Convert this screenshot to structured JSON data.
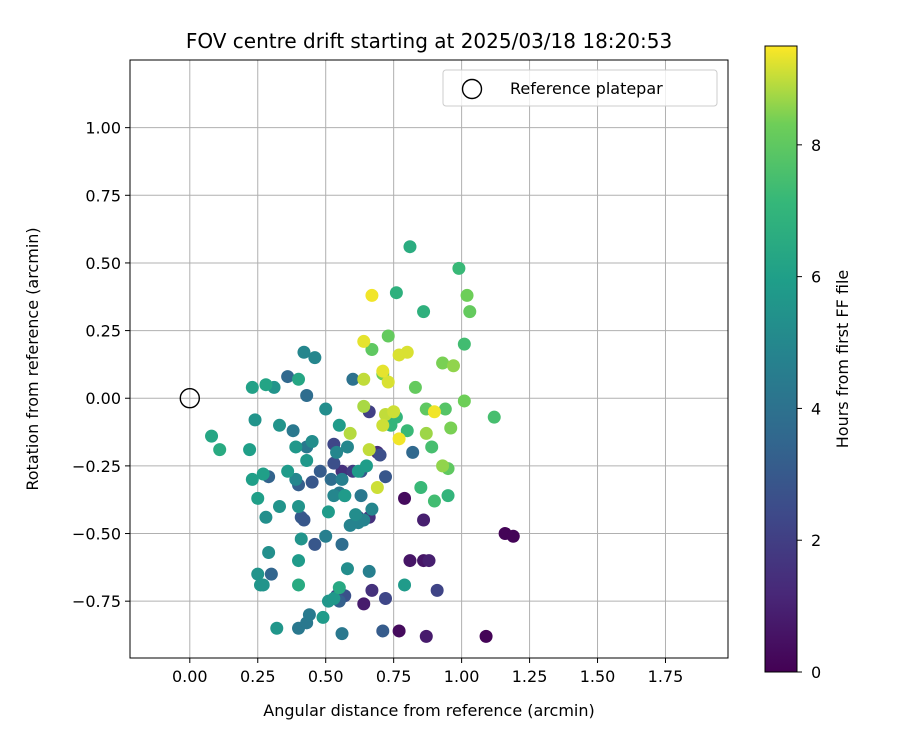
{
  "chart_data": {
    "type": "scatter",
    "title": "FOV centre drift starting at 2025/03/18 18:20:53",
    "xlabel": "Angular distance from reference (arcmin)",
    "ylabel": "Rotation from reference (arcmin)",
    "xlim": [
      -0.22,
      1.98
    ],
    "ylim": [
      -0.96,
      1.25
    ],
    "xticks": [
      "0.00",
      "0.25",
      "0.50",
      "0.75",
      "1.00",
      "1.25",
      "1.50",
      "1.75"
    ],
    "yticks": [
      "-0.75",
      "-0.50",
      "-0.25",
      "0.00",
      "0.25",
      "0.50",
      "0.75",
      "1.00"
    ],
    "grid": true,
    "legend": {
      "position": "top-right",
      "entries": [
        "Reference platepar"
      ]
    },
    "reference_point": {
      "x": 0.0,
      "y": 0.0
    },
    "colorbar": {
      "label": "Hours from first FF file",
      "min": 0,
      "max": 9.5,
      "colormap": "viridis",
      "ticks": [
        "0",
        "2",
        "4",
        "6",
        "8"
      ]
    },
    "points": [
      {
        "x": 1.09,
        "y": -0.88,
        "c": 0.1
      },
      {
        "x": 1.16,
        "y": -0.5,
        "c": 0.1
      },
      {
        "x": 1.19,
        "y": -0.51,
        "c": 0.1
      },
      {
        "x": 0.77,
        "y": -0.86,
        "c": 0.3
      },
      {
        "x": 0.87,
        "y": -0.88,
        "c": 0.8
      },
      {
        "x": 0.79,
        "y": -0.37,
        "c": 0.3
      },
      {
        "x": 0.81,
        "y": -0.6,
        "c": 0.6
      },
      {
        "x": 0.86,
        "y": -0.6,
        "c": 0.6
      },
      {
        "x": 0.88,
        "y": -0.6,
        "c": 0.9
      },
      {
        "x": 0.86,
        "y": -0.45,
        "c": 0.9
      },
      {
        "x": 0.64,
        "y": -0.76,
        "c": 0.8
      },
      {
        "x": 0.67,
        "y": -0.71,
        "c": 1.5
      },
      {
        "x": 0.91,
        "y": -0.71,
        "c": 2.2
      },
      {
        "x": 0.66,
        "y": -0.44,
        "c": 1.5
      },
      {
        "x": 0.62,
        "y": -0.44,
        "c": 1.8
      },
      {
        "x": 0.56,
        "y": -0.27,
        "c": 1.5
      },
      {
        "x": 0.6,
        "y": -0.27,
        "c": 1.9
      },
      {
        "x": 0.69,
        "y": -0.2,
        "c": 1.4
      },
      {
        "x": 0.66,
        "y": -0.05,
        "c": 2.0
      },
      {
        "x": 0.72,
        "y": -0.74,
        "c": 2.3
      },
      {
        "x": 0.54,
        "y": -0.73,
        "c": 2.5
      },
      {
        "x": 0.57,
        "y": -0.73,
        "c": 2.7
      },
      {
        "x": 0.53,
        "y": -0.17,
        "c": 2.3
      },
      {
        "x": 0.53,
        "y": -0.24,
        "c": 2.6
      },
      {
        "x": 0.63,
        "y": -0.27,
        "c": 2.9
      },
      {
        "x": 0.7,
        "y": -0.21,
        "c": 2.6
      },
      {
        "x": 0.72,
        "y": -0.29,
        "c": 2.9
      },
      {
        "x": 0.71,
        "y": -0.86,
        "c": 3.1
      },
      {
        "x": 0.55,
        "y": -0.75,
        "c": 3.3
      },
      {
        "x": 0.46,
        "y": -0.54,
        "c": 2.9
      },
      {
        "x": 0.41,
        "y": -0.44,
        "c": 3.0
      },
      {
        "x": 0.42,
        "y": -0.45,
        "c": 2.9
      },
      {
        "x": 0.45,
        "y": -0.31,
        "c": 2.9
      },
      {
        "x": 0.4,
        "y": -0.32,
        "c": 3.2
      },
      {
        "x": 0.48,
        "y": -0.27,
        "c": 3.1
      },
      {
        "x": 0.29,
        "y": -0.29,
        "c": 3.4
      },
      {
        "x": 0.3,
        "y": -0.65,
        "c": 3.5
      },
      {
        "x": 0.36,
        "y": 0.08,
        "c": 3.6
      },
      {
        "x": 0.43,
        "y": 0.01,
        "c": 3.8
      },
      {
        "x": 0.6,
        "y": 0.07,
        "c": 4.0
      },
      {
        "x": 0.56,
        "y": -0.54,
        "c": 3.8
      },
      {
        "x": 0.57,
        "y": -0.36,
        "c": 3.8
      },
      {
        "x": 0.52,
        "y": -0.3,
        "c": 3.8
      },
      {
        "x": 0.82,
        "y": -0.2,
        "c": 3.6
      },
      {
        "x": 0.63,
        "y": -0.36,
        "c": 4.3
      },
      {
        "x": 0.55,
        "y": -0.35,
        "c": 4.3
      },
      {
        "x": 0.38,
        "y": -0.12,
        "c": 4.3
      },
      {
        "x": 0.43,
        "y": -0.18,
        "c": 4.3
      },
      {
        "x": 0.5,
        "y": -0.51,
        "c": 4.6
      },
      {
        "x": 0.56,
        "y": -0.87,
        "c": 4.3
      },
      {
        "x": 0.4,
        "y": -0.85,
        "c": 4.3
      },
      {
        "x": 0.43,
        "y": -0.83,
        "c": 4.3
      },
      {
        "x": 0.44,
        "y": -0.8,
        "c": 4.4
      },
      {
        "x": 0.56,
        "y": -0.3,
        "c": 4.6
      },
      {
        "x": 0.59,
        "y": -0.47,
        "c": 4.8
      },
      {
        "x": 0.62,
        "y": -0.46,
        "c": 4.8
      },
      {
        "x": 0.64,
        "y": -0.45,
        "c": 4.8
      },
      {
        "x": 0.67,
        "y": -0.41,
        "c": 4.9
      },
      {
        "x": 0.61,
        "y": -0.43,
        "c": 5.2
      },
      {
        "x": 0.39,
        "y": -0.3,
        "c": 4.9
      },
      {
        "x": 0.42,
        "y": 0.17,
        "c": 4.9
      },
      {
        "x": 0.46,
        "y": 0.15,
        "c": 4.9
      },
      {
        "x": 0.54,
        "y": -0.2,
        "c": 4.9
      },
      {
        "x": 0.58,
        "y": -0.18,
        "c": 4.9
      },
      {
        "x": 0.53,
        "y": -0.36,
        "c": 4.9
      },
      {
        "x": 0.66,
        "y": -0.64,
        "c": 4.6
      },
      {
        "x": 0.58,
        "y": -0.63,
        "c": 5.2
      },
      {
        "x": 0.45,
        "y": -0.16,
        "c": 5.2
      },
      {
        "x": 0.5,
        "y": -0.04,
        "c": 5.2
      },
      {
        "x": 0.31,
        "y": 0.04,
        "c": 5.5
      },
      {
        "x": 0.33,
        "y": -0.1,
        "c": 5.5
      },
      {
        "x": 0.28,
        "y": -0.44,
        "c": 5.3
      },
      {
        "x": 0.24,
        "y": -0.08,
        "c": 5.5
      },
      {
        "x": 0.33,
        "y": -0.4,
        "c": 5.5
      },
      {
        "x": 0.4,
        "y": -0.4,
        "c": 5.5
      },
      {
        "x": 0.41,
        "y": -0.52,
        "c": 5.5
      },
      {
        "x": 0.29,
        "y": -0.57,
        "c": 5.3
      },
      {
        "x": 0.25,
        "y": -0.65,
        "c": 5.5
      },
      {
        "x": 0.26,
        "y": -0.69,
        "c": 5.6
      },
      {
        "x": 0.27,
        "y": -0.69,
        "c": 5.5
      },
      {
        "x": 0.32,
        "y": -0.85,
        "c": 5.6
      },
      {
        "x": 0.51,
        "y": -0.75,
        "c": 5.6
      },
      {
        "x": 0.53,
        "y": -0.74,
        "c": 5.7
      },
      {
        "x": 0.49,
        "y": -0.81,
        "c": 5.8
      },
      {
        "x": 0.36,
        "y": -0.27,
        "c": 5.8
      },
      {
        "x": 0.43,
        "y": -0.23,
        "c": 5.7
      },
      {
        "x": 0.39,
        "y": -0.18,
        "c": 5.7
      },
      {
        "x": 0.4,
        "y": -0.6,
        "c": 5.8
      },
      {
        "x": 0.55,
        "y": -0.1,
        "c": 5.8
      },
      {
        "x": 0.57,
        "y": -0.36,
        "c": 5.8
      },
      {
        "x": 0.51,
        "y": -0.42,
        "c": 5.8
      },
      {
        "x": 0.62,
        "y": -0.27,
        "c": 5.8
      },
      {
        "x": 0.65,
        "y": -0.25,
        "c": 5.9
      },
      {
        "x": 0.79,
        "y": -0.69,
        "c": 5.8
      },
      {
        "x": 0.25,
        "y": -0.37,
        "c": 6.0
      },
      {
        "x": 0.27,
        "y": -0.28,
        "c": 6.0
      },
      {
        "x": 0.23,
        "y": -0.3,
        "c": 6.0
      },
      {
        "x": 0.22,
        "y": -0.19,
        "c": 6.0
      },
      {
        "x": 0.23,
        "y": 0.04,
        "c": 6.1
      },
      {
        "x": 0.28,
        "y": 0.05,
        "c": 6.2
      },
      {
        "x": 0.4,
        "y": 0.07,
        "c": 6.3
      },
      {
        "x": 0.08,
        "y": -0.14,
        "c": 6.3
      },
      {
        "x": 0.11,
        "y": -0.19,
        "c": 6.5
      },
      {
        "x": 0.55,
        "y": -0.7,
        "c": 6.4
      },
      {
        "x": 0.4,
        "y": -0.69,
        "c": 6.5
      },
      {
        "x": 0.81,
        "y": 0.56,
        "c": 6.6
      },
      {
        "x": 0.86,
        "y": 0.32,
        "c": 6.8
      },
      {
        "x": 0.76,
        "y": 0.39,
        "c": 6.8
      },
      {
        "x": 0.74,
        "y": -0.1,
        "c": 7.0
      },
      {
        "x": 0.76,
        "y": -0.07,
        "c": 7.0
      },
      {
        "x": 0.8,
        "y": -0.12,
        "c": 7.2
      },
      {
        "x": 0.95,
        "y": -0.36,
        "c": 7.0
      },
      {
        "x": 0.85,
        "y": -0.33,
        "c": 7.2
      },
      {
        "x": 0.9,
        "y": -0.38,
        "c": 7.4
      },
      {
        "x": 0.99,
        "y": 0.48,
        "c": 7.2
      },
      {
        "x": 1.01,
        "y": 0.2,
        "c": 7.4
      },
      {
        "x": 1.12,
        "y": -0.07,
        "c": 7.5
      },
      {
        "x": 0.89,
        "y": -0.18,
        "c": 7.5
      },
      {
        "x": 0.94,
        "y": -0.04,
        "c": 7.8
      },
      {
        "x": 0.87,
        "y": -0.04,
        "c": 8.0
      },
      {
        "x": 0.95,
        "y": -0.26,
        "c": 8.0
      },
      {
        "x": 1.03,
        "y": 0.32,
        "c": 8.1
      },
      {
        "x": 1.02,
        "y": 0.38,
        "c": 8.3
      },
      {
        "x": 0.83,
        "y": 0.04,
        "c": 8.1
      },
      {
        "x": 0.73,
        "y": 0.23,
        "c": 8.1
      },
      {
        "x": 0.67,
        "y": 0.18,
        "c": 8.0
      },
      {
        "x": 0.71,
        "y": 0.09,
        "c": 8.3
      },
      {
        "x": 1.01,
        "y": -0.01,
        "c": 8.3
      },
      {
        "x": 0.96,
        "y": -0.11,
        "c": 8.4
      },
      {
        "x": 0.93,
        "y": 0.13,
        "c": 8.4
      },
      {
        "x": 0.97,
        "y": 0.12,
        "c": 8.6
      },
      {
        "x": 0.93,
        "y": -0.25,
        "c": 8.6
      },
      {
        "x": 0.87,
        "y": -0.13,
        "c": 8.7
      },
      {
        "x": 0.64,
        "y": -0.03,
        "c": 8.8
      },
      {
        "x": 0.59,
        "y": -0.13,
        "c": 8.9
      },
      {
        "x": 0.66,
        "y": -0.19,
        "c": 9.0
      },
      {
        "x": 0.72,
        "y": -0.06,
        "c": 9.0
      },
      {
        "x": 0.75,
        "y": -0.05,
        "c": 9.1
      },
      {
        "x": 0.71,
        "y": -0.1,
        "c": 9.1
      },
      {
        "x": 0.69,
        "y": -0.33,
        "c": 9.1
      },
      {
        "x": 0.64,
        "y": 0.07,
        "c": 9.0
      },
      {
        "x": 0.73,
        "y": 0.06,
        "c": 9.2
      },
      {
        "x": 0.71,
        "y": 0.1,
        "c": 9.3
      },
      {
        "x": 0.77,
        "y": 0.16,
        "c": 9.2
      },
      {
        "x": 0.8,
        "y": 0.17,
        "c": 9.2
      },
      {
        "x": 0.64,
        "y": 0.21,
        "c": 9.3
      },
      {
        "x": 0.67,
        "y": 0.38,
        "c": 9.4
      },
      {
        "x": 0.77,
        "y": -0.15,
        "c": 9.4
      },
      {
        "x": 0.9,
        "y": -0.05,
        "c": 9.4
      }
    ]
  }
}
